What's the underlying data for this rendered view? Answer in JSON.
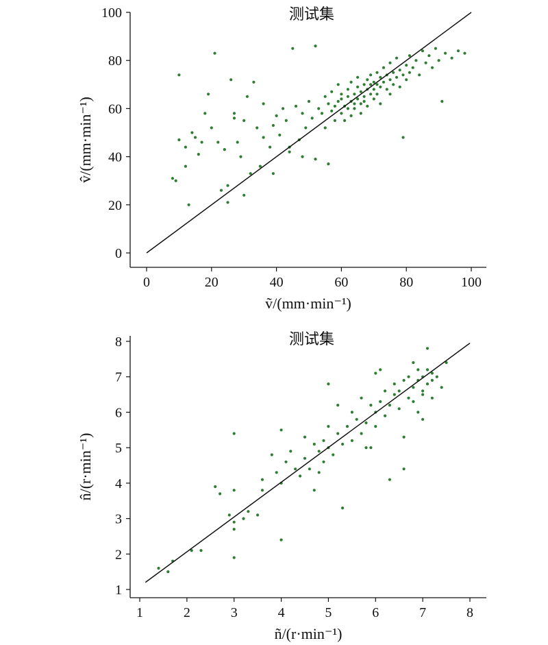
{
  "chart_data": [
    {
      "type": "scatter",
      "title": "测试集",
      "xlabel": "ṽ/(mm·min⁻¹)",
      "ylabel": "v̂/(mm·min⁻¹)",
      "xlim": [
        0,
        100
      ],
      "ylim": [
        0,
        100
      ],
      "xticks": [
        "0",
        "20",
        "40",
        "60",
        "80",
        "100"
      ],
      "yticks": [
        "0",
        "20",
        "40",
        "60",
        "80",
        "100"
      ],
      "point_color": "#2e7d32",
      "fit_line": {
        "x": [
          0,
          100
        ],
        "y": [
          0,
          100
        ]
      },
      "series": [
        {
          "points": [
            [
              8,
              31
            ],
            [
              9,
              30
            ],
            [
              10,
              47
            ],
            [
              10,
              74
            ],
            [
              12,
              36
            ],
            [
              13,
              20
            ],
            [
              14,
              50
            ],
            [
              15,
              48
            ],
            [
              17,
              46
            ],
            [
              18,
              58
            ],
            [
              19,
              66
            ],
            [
              20,
              52
            ],
            [
              21,
              83
            ],
            [
              22,
              46
            ],
            [
              23,
              26
            ],
            [
              24,
              43
            ],
            [
              25,
              28
            ],
            [
              25,
              21
            ],
            [
              26,
              72
            ],
            [
              27,
              58
            ],
            [
              28,
              46
            ],
            [
              29,
              40
            ],
            [
              30,
              55
            ],
            [
              30,
              24
            ],
            [
              32,
              33
            ],
            [
              33,
              71
            ],
            [
              34,
              52
            ],
            [
              35,
              36
            ],
            [
              36,
              48
            ],
            [
              36,
              62
            ],
            [
              38,
              44
            ],
            [
              39,
              53
            ],
            [
              40,
              57
            ],
            [
              41,
              49
            ],
            [
              42,
              60
            ],
            [
              43,
              55
            ],
            [
              44,
              42
            ],
            [
              45,
              85
            ],
            [
              46,
              61
            ],
            [
              47,
              47
            ],
            [
              48,
              58
            ],
            [
              49,
              52
            ],
            [
              50,
              63
            ],
            [
              51,
              56
            ],
            [
              52,
              86
            ],
            [
              52,
              39
            ],
            [
              53,
              60
            ],
            [
              54,
              58
            ],
            [
              55,
              65
            ],
            [
              55,
              52
            ],
            [
              56,
              62
            ],
            [
              57,
              59
            ],
            [
              57,
              67
            ],
            [
              58,
              55
            ],
            [
              58,
              61
            ],
            [
              59,
              63
            ],
            [
              59,
              70
            ],
            [
              60,
              58
            ],
            [
              60,
              64
            ],
            [
              60,
              66
            ],
            [
              61,
              61
            ],
            [
              61,
              55
            ],
            [
              62,
              68
            ],
            [
              62,
              60
            ],
            [
              62,
              65
            ],
            [
              63,
              63
            ],
            [
              63,
              57
            ],
            [
              63,
              71
            ],
            [
              64,
              66
            ],
            [
              64,
              62
            ],
            [
              64,
              60
            ],
            [
              65,
              69
            ],
            [
              65,
              64
            ],
            [
              65,
              73
            ],
            [
              66,
              62
            ],
            [
              66,
              67
            ],
            [
              66,
              58
            ],
            [
              67,
              70
            ],
            [
              67,
              65
            ],
            [
              67,
              63
            ],
            [
              68,
              72
            ],
            [
              68,
              68
            ],
            [
              68,
              61
            ],
            [
              69,
              66
            ],
            [
              69,
              74
            ],
            [
              69,
              70
            ],
            [
              70,
              64
            ],
            [
              70,
              71
            ],
            [
              70,
              68
            ],
            [
              71,
              75
            ],
            [
              71,
              66
            ],
            [
              71,
              70
            ],
            [
              72,
              73
            ],
            [
              72,
              69
            ],
            [
              72,
              62
            ],
            [
              73,
              77
            ],
            [
              73,
              71
            ],
            [
              74,
              68
            ],
            [
              74,
              74
            ],
            [
              75,
              72
            ],
            [
              75,
              79
            ],
            [
              75,
              66
            ],
            [
              76,
              70
            ],
            [
              76,
              75
            ],
            [
              77,
              73
            ],
            [
              77,
              81
            ],
            [
              78,
              76
            ],
            [
              78,
              69
            ],
            [
              79,
              74
            ],
            [
              79,
              48
            ],
            [
              80,
              78
            ],
            [
              80,
              72
            ],
            [
              81,
              82
            ],
            [
              81,
              75
            ],
            [
              82,
              77
            ],
            [
              83,
              80
            ],
            [
              84,
              74
            ],
            [
              85,
              84
            ],
            [
              86,
              79
            ],
            [
              87,
              82
            ],
            [
              88,
              77
            ],
            [
              89,
              85
            ],
            [
              90,
              80
            ],
            [
              91,
              63
            ],
            [
              92,
              83
            ],
            [
              94,
              81
            ],
            [
              96,
              84
            ],
            [
              98,
              83
            ],
            [
              56,
              37
            ],
            [
              48,
              40
            ],
            [
              44,
              44
            ],
            [
              39,
              33
            ],
            [
              27,
              56
            ],
            [
              16,
              41
            ],
            [
              12,
              44
            ],
            [
              31,
              65
            ]
          ]
        }
      ]
    },
    {
      "type": "scatter",
      "title": "测试集",
      "xlabel": "ñ/(r·min⁻¹)",
      "ylabel": "n̂/(r·min⁻¹)",
      "xlim": [
        1,
        8
      ],
      "ylim": [
        1,
        8
      ],
      "xticks": [
        "1",
        "2",
        "3",
        "4",
        "5",
        "6",
        "7",
        "8"
      ],
      "yticks": [
        "1",
        "2",
        "3",
        "4",
        "5",
        "6",
        "7",
        "8"
      ],
      "point_color": "#2e7d32",
      "fit_line": {
        "x": [
          1.12,
          8.0
        ],
        "y": [
          1.2,
          7.95
        ]
      },
      "series": [
        {
          "points": [
            [
              1.4,
              1.6
            ],
            [
              1.6,
              1.5
            ],
            [
              1.7,
              1.8
            ],
            [
              2.1,
              2.1
            ],
            [
              2.3,
              2.1
            ],
            [
              2.6,
              3.9
            ],
            [
              2.7,
              3.7
            ],
            [
              2.9,
              3.1
            ],
            [
              3.0,
              2.7
            ],
            [
              3.0,
              2.9
            ],
            [
              3.0,
              1.9
            ],
            [
              3.0,
              5.4
            ],
            [
              3.0,
              3.8
            ],
            [
              3.2,
              3.0
            ],
            [
              3.3,
              3.2
            ],
            [
              3.5,
              3.1
            ],
            [
              3.6,
              4.1
            ],
            [
              3.6,
              3.8
            ],
            [
              3.8,
              4.8
            ],
            [
              3.9,
              4.3
            ],
            [
              4.0,
              2.4
            ],
            [
              4.0,
              5.5
            ],
            [
              4.0,
              4.0
            ],
            [
              4.1,
              4.6
            ],
            [
              4.2,
              4.9
            ],
            [
              4.3,
              4.4
            ],
            [
              4.4,
              4.2
            ],
            [
              4.5,
              5.3
            ],
            [
              4.5,
              4.7
            ],
            [
              4.6,
              4.4
            ],
            [
              4.7,
              3.8
            ],
            [
              4.7,
              5.1
            ],
            [
              4.8,
              4.9
            ],
            [
              4.9,
              5.2
            ],
            [
              4.9,
              4.6
            ],
            [
              5.0,
              5.0
            ],
            [
              5.0,
              5.6
            ],
            [
              5.0,
              6.8
            ],
            [
              5.1,
              4.8
            ],
            [
              5.2,
              5.4
            ],
            [
              5.3,
              3.3
            ],
            [
              5.3,
              5.1
            ],
            [
              5.4,
              5.6
            ],
            [
              5.5,
              5.2
            ],
            [
              5.5,
              6.0
            ],
            [
              5.6,
              5.8
            ],
            [
              5.7,
              5.4
            ],
            [
              5.7,
              6.4
            ],
            [
              5.8,
              5.7
            ],
            [
              5.9,
              6.2
            ],
            [
              5.9,
              5.0
            ],
            [
              6.0,
              6.0
            ],
            [
              6.0,
              5.6
            ],
            [
              6.0,
              7.1
            ],
            [
              6.1,
              6.3
            ],
            [
              6.2,
              5.9
            ],
            [
              6.2,
              6.6
            ],
            [
              6.3,
              6.2
            ],
            [
              6.3,
              4.1
            ],
            [
              6.4,
              6.5
            ],
            [
              6.4,
              6.8
            ],
            [
              6.5,
              6.1
            ],
            [
              6.5,
              6.6
            ],
            [
              6.6,
              6.9
            ],
            [
              6.6,
              5.3
            ],
            [
              6.7,
              6.4
            ],
            [
              6.7,
              7.0
            ],
            [
              6.8,
              6.7
            ],
            [
              6.8,
              7.4
            ],
            [
              6.8,
              6.3
            ],
            [
              6.9,
              6.9
            ],
            [
              6.9,
              7.2
            ],
            [
              7.0,
              6.6
            ],
            [
              7.0,
              7.0
            ],
            [
              7.0,
              6.5
            ],
            [
              7.1,
              6.8
            ],
            [
              7.1,
              7.2
            ],
            [
              7.1,
              7.8
            ],
            [
              7.2,
              6.9
            ],
            [
              7.2,
              7.1
            ],
            [
              7.2,
              6.4
            ],
            [
              7.3,
              7.0
            ],
            [
              7.4,
              6.7
            ],
            [
              7.5,
              7.4
            ],
            [
              6.6,
              4.4
            ],
            [
              5.8,
              5.0
            ],
            [
              4.8,
              4.3
            ],
            [
              5.2,
              6.2
            ],
            [
              6.1,
              7.2
            ],
            [
              7.0,
              5.8
            ],
            [
              6.9,
              6.0
            ]
          ]
        }
      ]
    }
  ]
}
